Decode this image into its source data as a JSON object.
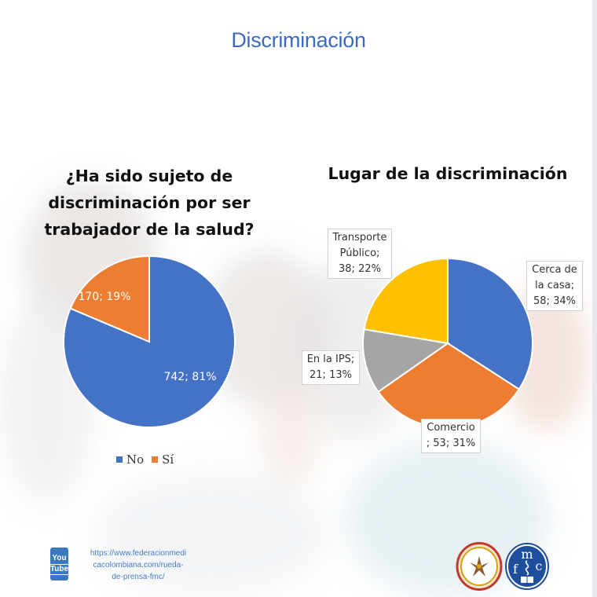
{
  "page": {
    "title": "Discriminación",
    "url_text": [
      "https://www.federacionmedi",
      "cacolombiana.com/rueda-",
      "de-prensa-fmc/"
    ],
    "youtube_icon": {
      "name": "youtube-icon",
      "line1": "You",
      "line2": "Tube"
    },
    "logos": [
      "colegio-medico-seal-logo",
      "fmc-logo"
    ],
    "fmc_letters": {
      "m": "m",
      "f": "f",
      "c": "c"
    }
  },
  "colors": {
    "title": "#3b6bbf",
    "blue": "#4472c4",
    "orange": "#ed7d31",
    "gray": "#a5a5a5",
    "yellow": "#ffc000"
  },
  "chart_data": [
    {
      "type": "pie",
      "title": "¿Ha sido sujeto de discriminación por ser trabajador de la salud?",
      "title_lines": [
        "¿Ha sido sujeto de",
        "discriminación por ser",
        "trabajador de la salud?"
      ],
      "categories": [
        "No",
        "Sí"
      ],
      "values": [
        742,
        170
      ],
      "percents": [
        81,
        19
      ],
      "labels": [
        "742; 81%",
        "170; 19%"
      ],
      "colors": [
        "#4472c4",
        "#ed7d31"
      ],
      "legend": {
        "position": "bottom",
        "entries": [
          "No",
          "Sí"
        ]
      }
    },
    {
      "type": "pie",
      "title": "Lugar de la discriminación",
      "categories": [
        "Cerca de la casa",
        "Comercio",
        "En la IPS",
        "Transporte Público"
      ],
      "values": [
        58,
        53,
        21,
        38
      ],
      "percents": [
        34,
        31,
        13,
        22
      ],
      "labels": [
        [
          "Cerca de",
          "la casa;",
          "58; 34%"
        ],
        [
          "Comercio",
          "; 53; 31%"
        ],
        [
          "En la IPS;",
          "21; 13%"
        ],
        [
          "Transporte",
          "Público;",
          "38; 22%"
        ]
      ],
      "colors": [
        "#4472c4",
        "#ed7d31",
        "#a5a5a5",
        "#ffc000"
      ],
      "legend": {
        "position": "none"
      }
    }
  ]
}
